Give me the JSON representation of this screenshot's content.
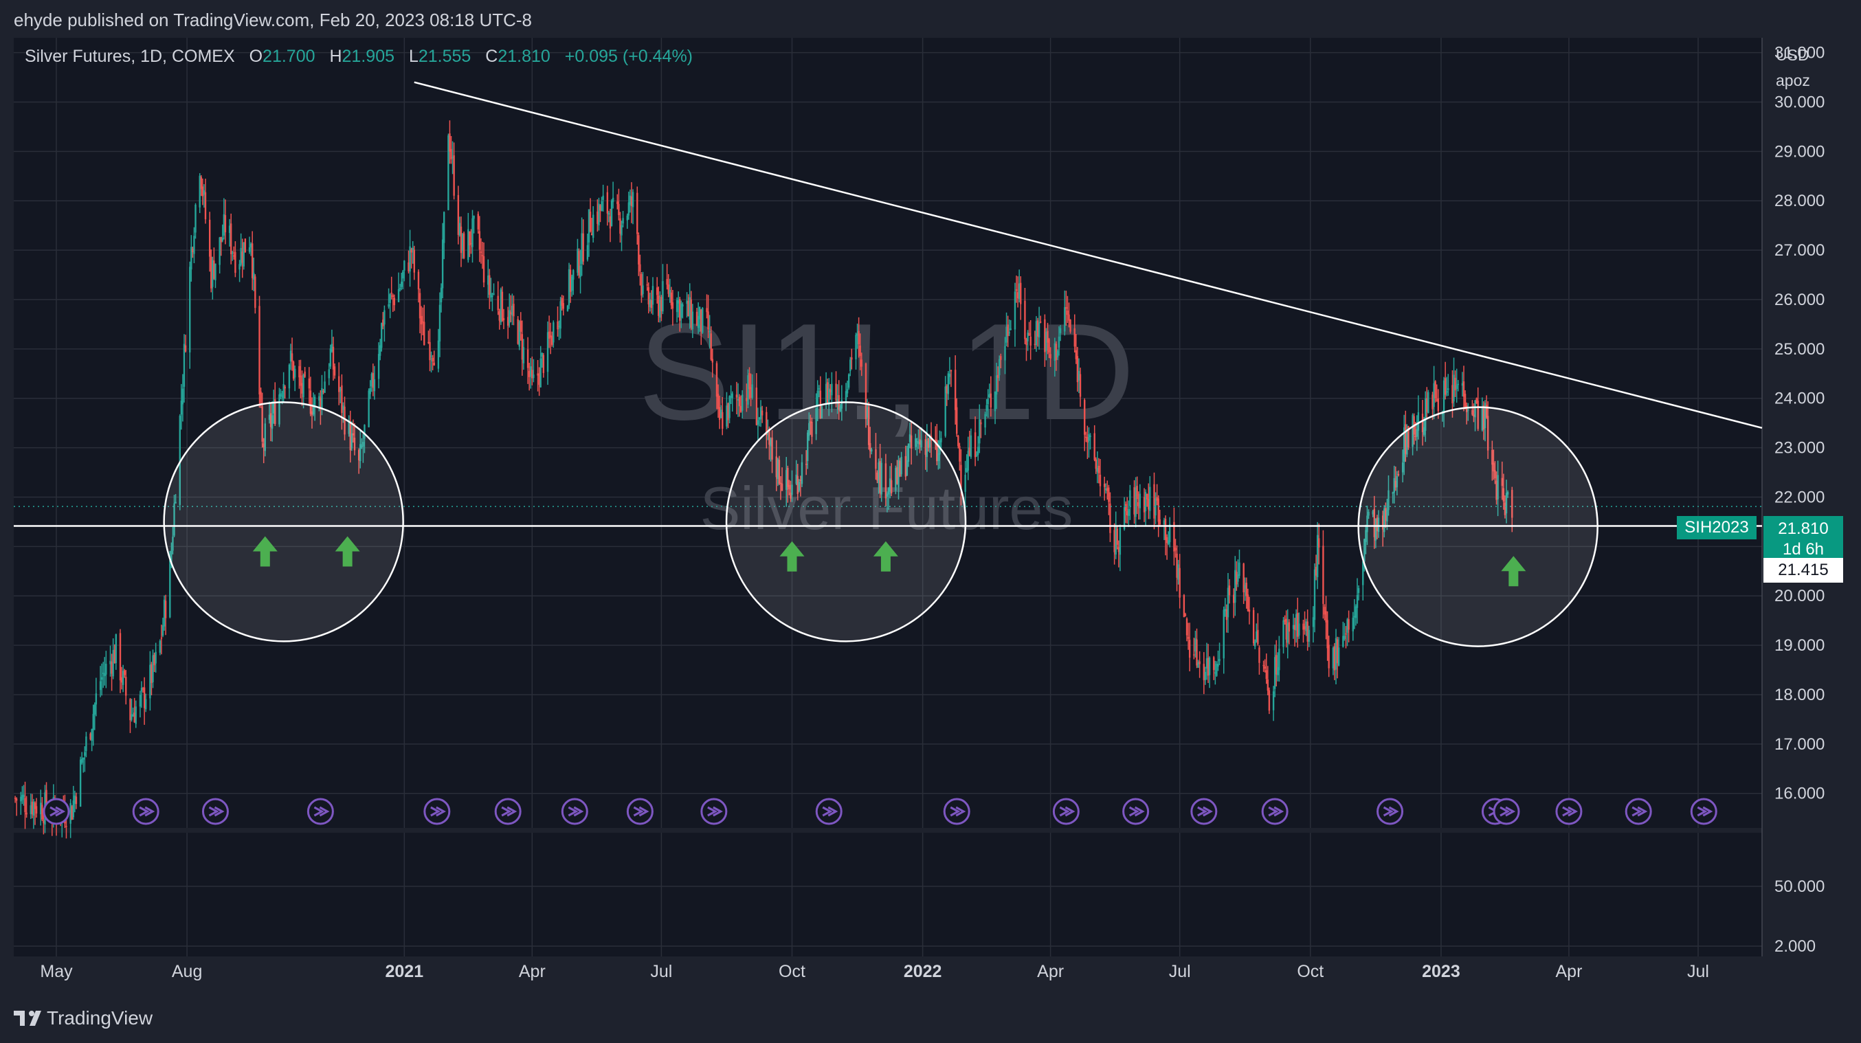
{
  "header": {
    "published_by": "ehyde published on TradingView.com, Feb 20, 2023 08:18 UTC-8"
  },
  "legend": {
    "symbol": "Silver Futures, 1D, COMEX",
    "o_label": "O",
    "o": "21.700",
    "h_label": "H",
    "h": "21.905",
    "l_label": "L",
    "l": "21.555",
    "c_label": "C",
    "c": "21.810",
    "change": "+0.095 (+0.44%)"
  },
  "watermark": {
    "symbol": "SI1!, 1D",
    "name": "Silver Futures"
  },
  "price_axis": {
    "currency": "USD",
    "unit": "apoz"
  },
  "badges": {
    "contract": "SIH2023",
    "last_price": "21.810",
    "countdown": "1d 6h",
    "support_price": "21.415"
  },
  "footer": {
    "brand": "TradingView"
  },
  "colors": {
    "background": "#1e222d",
    "grid": "#2a2e39",
    "up": "#26a69a",
    "down": "#ef5350",
    "arrow": "#4caf50",
    "event_icon": "#7e57c2"
  },
  "chart_data": {
    "type": "candlestick",
    "interval": "1D",
    "x_range": [
      "2020-04-01",
      "2023-08-15"
    ],
    "y_range": [
      15.3,
      31.3
    ],
    "grid": true,
    "y_ticks": [
      16,
      17,
      18,
      19,
      20,
      21,
      22,
      23,
      24,
      25,
      26,
      27,
      28,
      29,
      30,
      31
    ],
    "y_tick_labels": [
      "16.000",
      "17.000",
      "18.000",
      "19.000",
      "20.000",
      "21.000",
      "22.000",
      "23.000",
      "24.000",
      "25.000",
      "26.000",
      "27.000",
      "28.000",
      "29.000",
      "30.000",
      "31.000"
    ],
    "x_ticks": [
      {
        "date": "2020-05-01",
        "label": "May",
        "bold": false
      },
      {
        "date": "2020-08-01",
        "label": "Aug",
        "bold": false
      },
      {
        "date": "2021-01-01",
        "label": "2021",
        "bold": true
      },
      {
        "date": "2021-04-01",
        "label": "Apr",
        "bold": false
      },
      {
        "date": "2021-07-01",
        "label": "Jul",
        "bold": false
      },
      {
        "date": "2021-10-01",
        "label": "Oct",
        "bold": false
      },
      {
        "date": "2022-01-01",
        "label": "2022",
        "bold": true
      },
      {
        "date": "2022-04-01",
        "label": "Apr",
        "bold": false
      },
      {
        "date": "2022-07-01",
        "label": "Jul",
        "bold": false
      },
      {
        "date": "2022-10-01",
        "label": "Oct",
        "bold": false
      },
      {
        "date": "2023-01-01",
        "label": "2023",
        "bold": true
      },
      {
        "date": "2023-04-01",
        "label": "Apr",
        "bold": false
      },
      {
        "date": "2023-07-01",
        "label": "Jul",
        "bold": false
      }
    ],
    "closes": [
      [
        "2020-04-02",
        15.9
      ],
      [
        "2020-04-15",
        15.8
      ],
      [
        "2020-05-01",
        15.6
      ],
      [
        "2020-05-12",
        15.7
      ],
      [
        "2020-05-22",
        17.0
      ],
      [
        "2020-06-01",
        18.3
      ],
      [
        "2020-06-12",
        18.9
      ],
      [
        "2020-06-22",
        17.6
      ],
      [
        "2020-07-01",
        17.9
      ],
      [
        "2020-07-12",
        18.8
      ],
      [
        "2020-07-20",
        20.5
      ],
      [
        "2020-07-28",
        24.0
      ],
      [
        "2020-08-04",
        27.0
      ],
      [
        "2020-08-10",
        28.8
      ],
      [
        "2020-08-18",
        26.5
      ],
      [
        "2020-08-28",
        27.5
      ],
      [
        "2020-09-05",
        26.8
      ],
      [
        "2020-09-15",
        27.3
      ],
      [
        "2020-09-23",
        23.0
      ],
      [
        "2020-10-01",
        23.7
      ],
      [
        "2020-10-12",
        24.8
      ],
      [
        "2020-10-20",
        24.2
      ],
      [
        "2020-11-01",
        23.8
      ],
      [
        "2020-11-10",
        24.9
      ],
      [
        "2020-11-20",
        23.6
      ],
      [
        "2020-11-30",
        22.6
      ],
      [
        "2020-12-08",
        24.0
      ],
      [
        "2020-12-18",
        25.8
      ],
      [
        "2020-12-28",
        26.2
      ],
      [
        "2021-01-06",
        27.0
      ],
      [
        "2021-01-14",
        25.3
      ],
      [
        "2021-01-25",
        24.9
      ],
      [
        "2021-02-01",
        29.5
      ],
      [
        "2021-02-10",
        27.0
      ],
      [
        "2021-02-20",
        27.4
      ],
      [
        "2021-03-01",
        26.2
      ],
      [
        "2021-03-12",
        25.8
      ],
      [
        "2021-03-22",
        25.4
      ],
      [
        "2021-04-01",
        24.2
      ],
      [
        "2021-04-12",
        25.0
      ],
      [
        "2021-04-22",
        26.0
      ],
      [
        "2021-05-01",
        26.5
      ],
      [
        "2021-05-12",
        27.6
      ],
      [
        "2021-05-22",
        27.9
      ],
      [
        "2021-06-01",
        27.6
      ],
      [
        "2021-06-12",
        28.0
      ],
      [
        "2021-06-18",
        26.0
      ],
      [
        "2021-06-28",
        25.9
      ],
      [
        "2021-07-06",
        26.2
      ],
      [
        "2021-07-16",
        25.8
      ],
      [
        "2021-07-26",
        25.6
      ],
      [
        "2021-08-03",
        25.4
      ],
      [
        "2021-08-10",
        23.5
      ],
      [
        "2021-08-20",
        23.9
      ],
      [
        "2021-09-01",
        24.2
      ],
      [
        "2021-09-12",
        23.2
      ],
      [
        "2021-09-22",
        22.5
      ],
      [
        "2021-09-30",
        22.1
      ],
      [
        "2021-10-08",
        22.6
      ],
      [
        "2021-10-18",
        23.8
      ],
      [
        "2021-10-28",
        24.2
      ],
      [
        "2021-11-05",
        24.0
      ],
      [
        "2021-11-15",
        25.3
      ],
      [
        "2021-11-24",
        23.4
      ],
      [
        "2021-12-02",
        22.4
      ],
      [
        "2021-12-12",
        22.2
      ],
      [
        "2021-12-22",
        22.9
      ],
      [
        "2022-01-02",
        23.2
      ],
      [
        "2022-01-12",
        22.8
      ],
      [
        "2022-01-20",
        24.6
      ],
      [
        "2022-01-28",
        22.5
      ],
      [
        "2022-02-08",
        23.2
      ],
      [
        "2022-02-18",
        24.0
      ],
      [
        "2022-02-28",
        25.2
      ],
      [
        "2022-03-08",
        26.3
      ],
      [
        "2022-03-15",
        25.2
      ],
      [
        "2022-03-25",
        25.5
      ],
      [
        "2022-04-02",
        24.7
      ],
      [
        "2022-04-12",
        25.8
      ],
      [
        "2022-04-20",
        24.6
      ],
      [
        "2022-04-28",
        23.0
      ],
      [
        "2022-05-08",
        22.3
      ],
      [
        "2022-05-16",
        21.0
      ],
      [
        "2022-05-28",
        21.9
      ],
      [
        "2022-06-06",
        22.0
      ],
      [
        "2022-06-16",
        21.8
      ],
      [
        "2022-06-28",
        20.8
      ],
      [
        "2022-07-06",
        19.2
      ],
      [
        "2022-07-16",
        18.6
      ],
      [
        "2022-07-26",
        18.6
      ],
      [
        "2022-08-04",
        20.0
      ],
      [
        "2022-08-14",
        20.5
      ],
      [
        "2022-08-24",
        19.0
      ],
      [
        "2022-09-02",
        18.0
      ],
      [
        "2022-09-12",
        19.3
      ],
      [
        "2022-09-22",
        19.5
      ],
      [
        "2022-10-01",
        19.1
      ],
      [
        "2022-10-06",
        21.0
      ],
      [
        "2022-10-14",
        18.5
      ],
      [
        "2022-10-24",
        19.3
      ],
      [
        "2022-11-02",
        19.6
      ],
      [
        "2022-11-10",
        21.6
      ],
      [
        "2022-11-20",
        21.2
      ],
      [
        "2022-11-30",
        22.5
      ],
      [
        "2022-12-08",
        23.3
      ],
      [
        "2022-12-18",
        23.5
      ],
      [
        "2022-12-28",
        24.1
      ],
      [
        "2023-01-06",
        24.0
      ],
      [
        "2023-01-14",
        24.3
      ],
      [
        "2023-01-24",
        23.8
      ],
      [
        "2023-02-01",
        23.6
      ],
      [
        "2023-02-06",
        22.5
      ],
      [
        "2023-02-14",
        21.9
      ],
      [
        "2023-02-20",
        21.81
      ]
    ],
    "last_price": 21.81,
    "support_level": 21.415,
    "trendline": [
      [
        "2021-01-08",
        30.4
      ],
      [
        "2023-08-15",
        23.4
      ]
    ],
    "circles": [
      {
        "date": "2020-10-08",
        "price": 21.5
      },
      {
        "date": "2021-11-08",
        "price": 21.5
      },
      {
        "date": "2023-01-27",
        "price": 21.4
      }
    ],
    "up_arrows": [
      {
        "date": "2020-09-25",
        "price": 20.9
      },
      {
        "date": "2020-11-22",
        "price": 20.9
      },
      {
        "date": "2021-10-01",
        "price": 20.8
      },
      {
        "date": "2021-12-06",
        "price": 20.8
      },
      {
        "date": "2023-02-21",
        "price": 20.5
      }
    ],
    "event_markers": [
      "2020-05-01",
      "2020-07-03",
      "2020-08-21",
      "2020-11-03",
      "2021-01-24",
      "2021-03-15",
      "2021-05-01",
      "2021-06-16",
      "2021-08-07",
      "2021-10-27",
      "2022-01-25",
      "2022-04-12",
      "2022-05-31",
      "2022-07-18",
      "2022-09-06",
      "2022-11-26",
      "2023-02-08",
      "2023-02-16",
      "2023-04-01",
      "2023-05-20",
      "2023-07-05"
    ],
    "lower_pane": {
      "ticks": [
        "50.000",
        "2.000"
      ]
    }
  }
}
